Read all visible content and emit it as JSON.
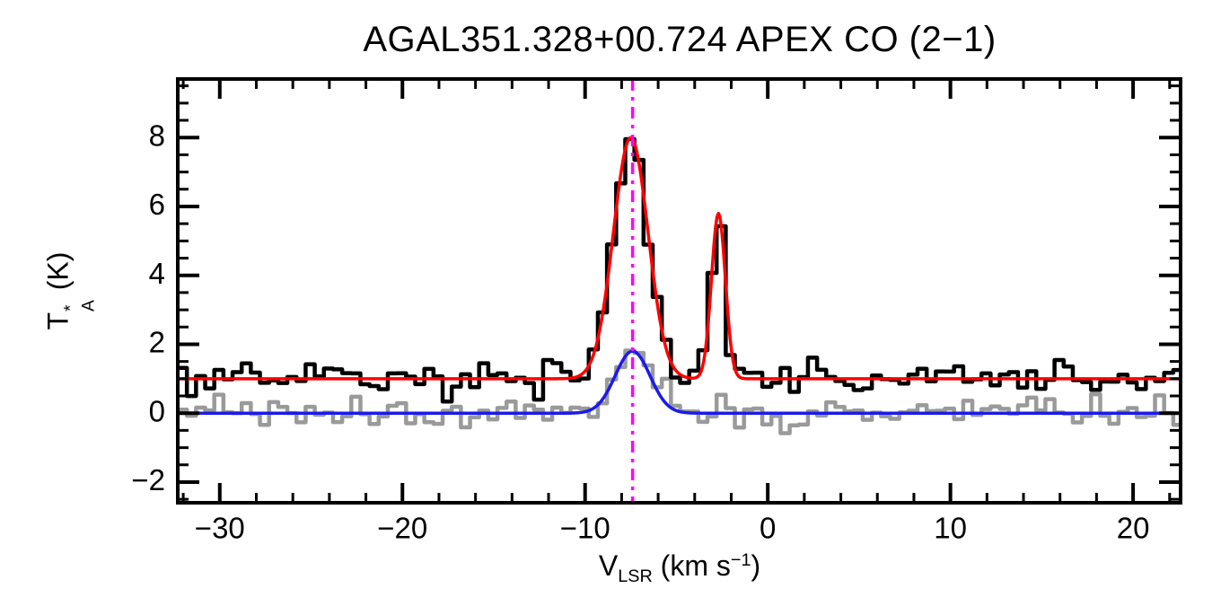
{
  "chart_data": {
    "type": "line",
    "title": "AGAL351.328+00.724  APEX CO (2−1)",
    "xlabel": "V_LSR (km s−1)",
    "ylabel": "T_A* (K)",
    "xlabel_parts": {
      "base": "V",
      "sub": "LSR",
      "mid": " (km s",
      "sup": "−1",
      "end": ")"
    },
    "ylabel_parts": {
      "base": "T",
      "sup": "*",
      "sub": "A",
      "end": " (K)"
    },
    "xlim": [
      -32.3,
      22.6
    ],
    "ylim": [
      -2.6,
      9.7
    ],
    "x_major_ticks": [
      -30,
      -20,
      -10,
      0,
      10,
      20
    ],
    "x_minor_step": 2,
    "y_major_ticks": [
      -2,
      0,
      2,
      4,
      6,
      8
    ],
    "y_minor_step": 0.5,
    "grid": false,
    "legend": null,
    "axis_color": "#000000",
    "bin_width": 0.5,
    "noise_seed": 7,
    "series": [
      {
        "name": "observed-spectrum",
        "color": "#000000",
        "style": "histogram",
        "line_width": 4.5,
        "z": 2,
        "baseline": 1.0,
        "noise_sigma": 0.27,
        "gaussians": [
          {
            "center": -7.5,
            "amplitude": 7.0,
            "sigma": 0.95
          },
          {
            "center": -2.7,
            "amplitude": 4.8,
            "sigma": 0.38
          }
        ]
      },
      {
        "name": "offset-spectrum",
        "color": "#9a9a9a",
        "style": "histogram",
        "line_width": 4.5,
        "z": 1,
        "baseline": 0.0,
        "noise_sigma": 0.24,
        "gaussians": [
          {
            "center": -7.4,
            "amplitude": 1.8,
            "sigma": 0.95
          },
          {
            "center": -2.6,
            "amplitude": 0.55,
            "sigma": 0.4
          }
        ]
      },
      {
        "name": "gaussian-fit-offset",
        "color": "#1a1aee",
        "style": "smooth",
        "line_width": 3.5,
        "z": 3,
        "baseline": 0.0,
        "noise_sigma": 0,
        "gaussians": [
          {
            "center": -7.4,
            "amplitude": 1.8,
            "sigma": 0.95
          }
        ]
      },
      {
        "name": "gaussian-fit-observed",
        "color": "#ff0000",
        "style": "smooth",
        "line_width": 3.5,
        "z": 4,
        "baseline": 1.0,
        "noise_sigma": 0,
        "gaussians": [
          {
            "center": -7.5,
            "amplitude": 7.0,
            "sigma": 0.95
          },
          {
            "center": -2.7,
            "amplitude": 4.8,
            "sigma": 0.38
          }
        ]
      }
    ],
    "vline": {
      "x": -7.4,
      "color": "#ff00ff",
      "style": "dash-dot",
      "line_width": 3.5
    }
  }
}
